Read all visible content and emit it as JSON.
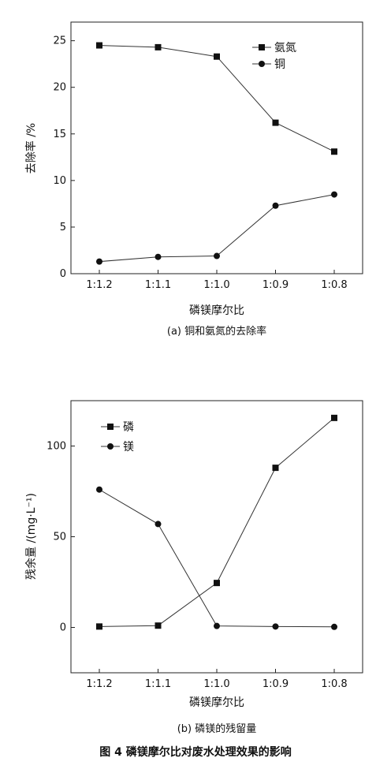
{
  "figure_title": "图 4   磷镁摩尔比对废水处理效果的影响",
  "chart_data": [
    {
      "type": "line",
      "caption": "(a) 铜和氨氮的去除率",
      "xlabel": "磷镁摩尔比",
      "ylabel": "去除率 /%",
      "categories": [
        "1:1.2",
        "1:1.1",
        "1:1.0",
        "1:0.9",
        "1:0.8"
      ],
      "ylim": [
        0,
        27
      ],
      "yticks": [
        0,
        5,
        10,
        15,
        20,
        25
      ],
      "legend_position": "top-right",
      "series": [
        {
          "name": "氨氮",
          "marker": "square",
          "values": [
            24.5,
            24.3,
            23.3,
            16.2,
            13.1
          ]
        },
        {
          "name": "铜",
          "marker": "circle",
          "values": [
            1.3,
            1.8,
            1.9,
            7.3,
            8.5
          ]
        }
      ]
    },
    {
      "type": "line",
      "caption": "(b) 磷镁的残留量",
      "xlabel": "磷镁摩尔比",
      "ylabel": "残余量 /(mg·L⁻¹)",
      "categories": [
        "1:1.2",
        "1:1.1",
        "1:1.0",
        "1:0.9",
        "1:0.8"
      ],
      "ylim": [
        -25,
        125
      ],
      "yticks": [
        0,
        50,
        100
      ],
      "legend_position": "top-left",
      "series": [
        {
          "name": "磷",
          "marker": "square",
          "values": [
            0.5,
            1,
            24.5,
            88,
            115.5
          ]
        },
        {
          "name": "镁",
          "marker": "circle",
          "values": [
            76,
            57,
            0.8,
            0.5,
            0.3
          ]
        }
      ]
    }
  ]
}
